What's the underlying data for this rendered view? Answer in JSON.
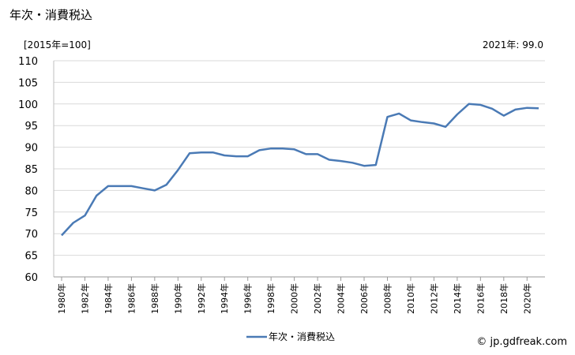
{
  "title": "年次・消費税込",
  "unit_label": "[2015年=100]",
  "latest_label": "2021年: 99.0",
  "credit": "© jp.gdfreak.com",
  "chart_data": {
    "type": "line",
    "x": [
      1980,
      1981,
      1982,
      1983,
      1984,
      1985,
      1986,
      1987,
      1988,
      1989,
      1990,
      1991,
      1992,
      1993,
      1994,
      1995,
      1996,
      1997,
      1998,
      1999,
      2000,
      2001,
      2002,
      2003,
      2004,
      2005,
      2006,
      2007,
      2008,
      2009,
      2010,
      2011,
      2012,
      2013,
      2014,
      2015,
      2016,
      2017,
      2018,
      2019,
      2020,
      2021
    ],
    "x_tick_labels": [
      "1980年",
      "1982年",
      "1984年",
      "1986年",
      "1988年",
      "1990年",
      "1992年",
      "1994年",
      "1996年",
      "1998年",
      "2000年",
      "2002年",
      "2004年",
      "2006年",
      "2008年",
      "2010年",
      "2012年",
      "2014年",
      "2016年",
      "2018年",
      "2020年"
    ],
    "series": [
      {
        "name": "年次・消費税込",
        "color": "#4a7ab5",
        "values": [
          69.6,
          72.5,
          74.2,
          78.8,
          81.0,
          81.0,
          81.0,
          80.5,
          80.0,
          81.3,
          84.7,
          88.6,
          88.8,
          88.8,
          88.1,
          87.9,
          87.9,
          89.3,
          89.7,
          89.7,
          89.5,
          88.4,
          88.4,
          87.1,
          86.8,
          86.4,
          85.7,
          85.9,
          97.0,
          97.8,
          96.2,
          95.8,
          95.5,
          94.7,
          97.6,
          100.0,
          99.8,
          98.9,
          97.3,
          98.7,
          99.1,
          99.0
        ]
      }
    ],
    "ylim": [
      60,
      110
    ],
    "y_ticks": [
      60,
      65,
      70,
      75,
      80,
      85,
      90,
      95,
      100,
      105,
      110
    ],
    "grid": true
  }
}
